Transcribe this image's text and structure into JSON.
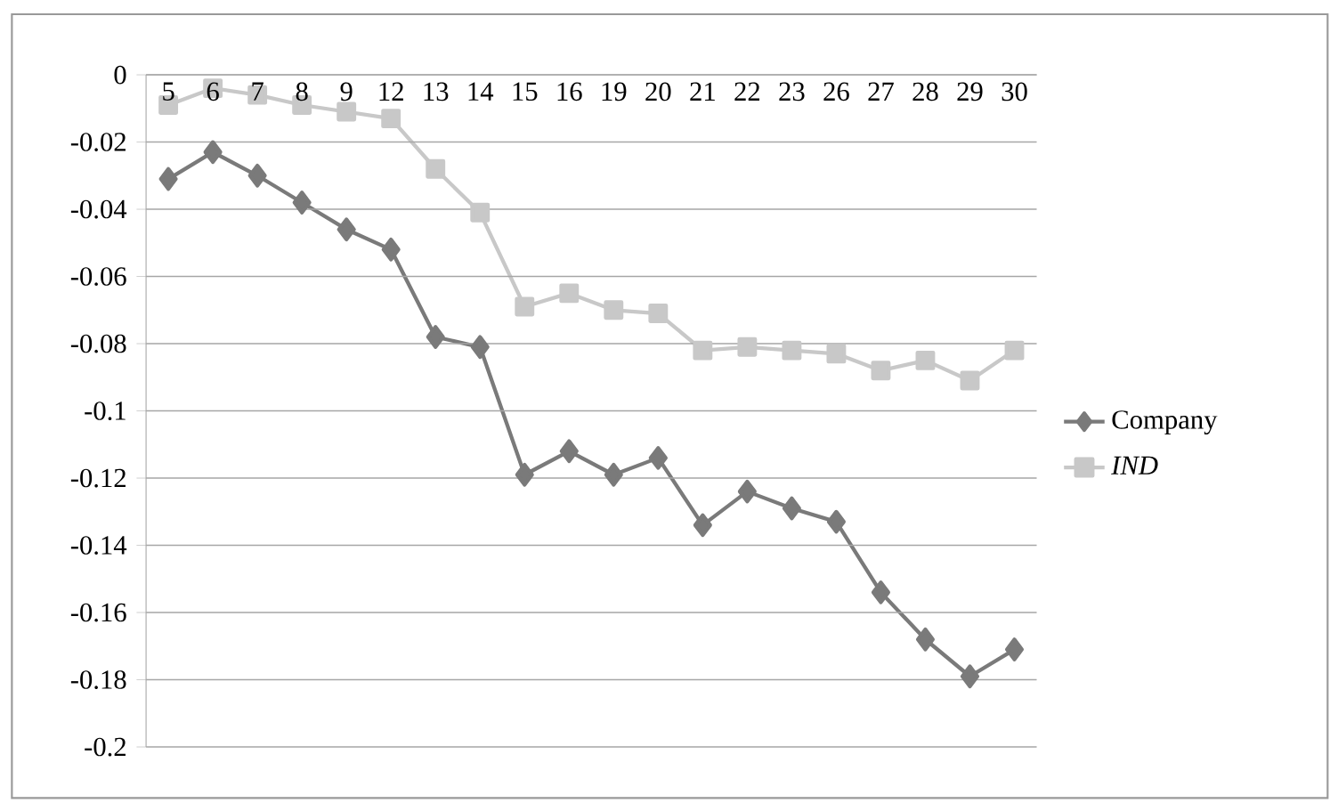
{
  "chart_data": {
    "type": "line",
    "categories": [
      "5",
      "6",
      "7",
      "8",
      "9",
      "12",
      "13",
      "14",
      "15",
      "16",
      "19",
      "20",
      "21",
      "22",
      "23",
      "26",
      "27",
      "28",
      "29",
      "30"
    ],
    "series": [
      {
        "name": "Company",
        "color": "#7a7a7a",
        "marker": "diamond",
        "values": [
          -0.031,
          -0.023,
          -0.03,
          -0.038,
          -0.046,
          -0.052,
          -0.078,
          -0.081,
          -0.119,
          -0.112,
          -0.119,
          -0.114,
          -0.134,
          -0.124,
          -0.129,
          -0.133,
          -0.154,
          -0.168,
          -0.179,
          -0.171
        ]
      },
      {
        "name": "IND",
        "color": "#c8c8c8",
        "marker": "square",
        "values": [
          -0.009,
          -0.004,
          -0.006,
          -0.009,
          -0.011,
          -0.013,
          -0.028,
          -0.041,
          -0.069,
          -0.065,
          -0.07,
          -0.071,
          -0.082,
          -0.081,
          -0.082,
          -0.083,
          -0.088,
          -0.085,
          -0.091,
          -0.082
        ]
      }
    ],
    "ylim": [
      -0.2,
      0
    ],
    "yticks": [
      0,
      -0.02,
      -0.04,
      -0.06,
      -0.08,
      -0.1,
      -0.12,
      -0.14,
      -0.16,
      -0.18,
      -0.2
    ],
    "grid": "y",
    "legend": "right",
    "line_style": "solid"
  }
}
